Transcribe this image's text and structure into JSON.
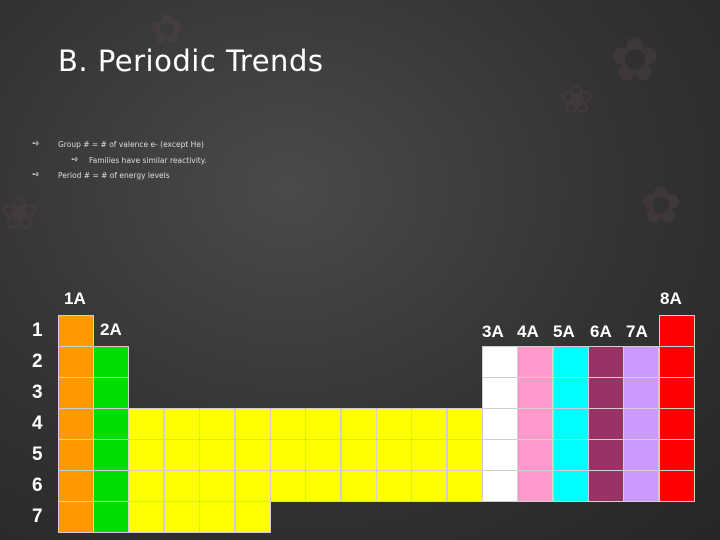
{
  "title": "B. Periodic Trends",
  "bullets": [
    "Group # = # of valence e- (except He)",
    "Families have similar reactivity.",
    "Period # = # of energy levels"
  ],
  "group_labels": [
    "1A",
    "2A",
    "3A",
    "4A",
    "5A",
    "6A",
    "7A",
    "8A"
  ],
  "period_labels": [
    "1",
    "2",
    "3",
    "4",
    "5",
    "6",
    "7"
  ],
  "colors": {
    "group1": "#ff9900",
    "group2": "#00dd00",
    "transition": "#ffff00",
    "group3": "#ffffff",
    "group4": "#ff99cc",
    "group5": "#00ffff",
    "group6": "#993366",
    "group7": "#cc99ff",
    "group8": "#ff0000"
  }
}
